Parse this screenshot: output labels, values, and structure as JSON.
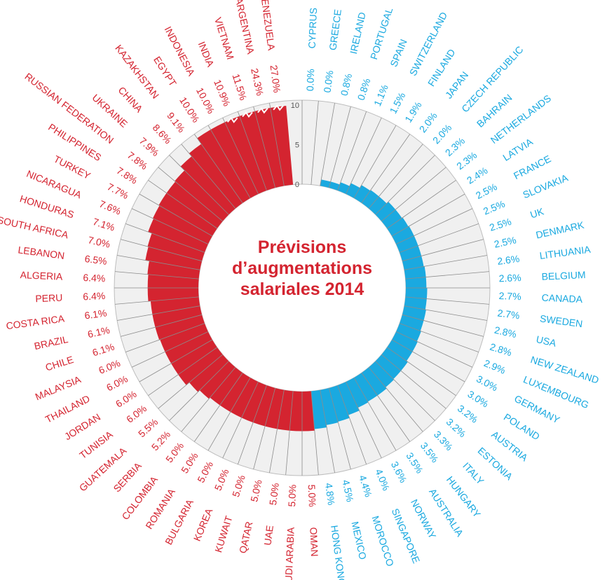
{
  "colors": {
    "high": "#d42430",
    "low": "#1aa9e0",
    "band": "#f0f0f0",
    "spoke": "#8c8c8c"
  },
  "chart_data": {
    "type": "bar",
    "layout": "radial",
    "title": [
      "Prévisions",
      "d’augmentations",
      "salariales 2014"
    ],
    "scale_ticks": [
      "0",
      "5",
      "10"
    ],
    "scale_max": 10,
    "series_below_3_percent": {
      "categories": [
        "CYPRUS",
        "GREECE",
        "IRELAND",
        "PORTUGAL",
        "SPAIN",
        "SWITZERLAND",
        "FINLAND",
        "JAPAN",
        "CZECH REPUBLIC",
        "BAHRAIN",
        "NETHERLANDS",
        "LATVIA",
        "FRANCE",
        "SLOVAKIA",
        "UK",
        "DENMARK",
        "LITHUANIA",
        "BELGIUM",
        "CANADA",
        "SWEDEN",
        "USA",
        "NEW ZEALAND",
        "LUXEMBOURG",
        "GERMANY",
        "POLAND",
        "AUSTRIA",
        "ESTONIA",
        "ITALY",
        "HUNGARY",
        "AUSTRALIA",
        "NORWAY",
        "SINGAPORE",
        "MOROCCO",
        "MEXICO",
        "HONG KONG"
      ],
      "values": [
        0.0,
        0.0,
        0.8,
        0.8,
        1.1,
        1.5,
        1.9,
        2.0,
        2.0,
        2.3,
        2.3,
        2.4,
        2.5,
        2.5,
        2.5,
        2.5,
        2.6,
        2.6,
        2.7,
        2.7,
        2.8,
        2.8,
        2.9,
        3.0,
        3.0,
        3.2,
        3.2,
        3.3,
        3.5,
        3.5,
        3.6,
        4.0,
        4.4,
        4.5,
        4.8
      ],
      "value_labels": [
        "0.0%",
        "0.0%",
        "0.8%",
        "0.8%",
        "1.1%",
        "1.5%",
        "1.9%",
        "2.0%",
        "2.0%",
        "2.3%",
        "2.3%",
        "2.4%",
        "2.5%",
        "2.5%",
        "2.5%",
        "2.5%",
        "2.6%",
        "2.6%",
        "2.7%",
        "2.7%",
        "2.8%",
        "2.8%",
        "2.9%",
        "3.0%",
        "3.0%",
        "3.2%",
        "3.2%",
        "3.3%",
        "3.5%",
        "3.5%",
        "3.6%",
        "4.0%",
        "4.4%",
        "4.5%",
        "4.8%"
      ]
    },
    "series_high": {
      "categories": [
        "OMAN",
        "SAUDI ARABIA",
        "UAE",
        "QATAR",
        "KUWAIT",
        "KOREA",
        "BULGARIA",
        "ROMANIA",
        "COLOMBIA",
        "SERBIA",
        "GUATEMALA",
        "TUNISIA",
        "JORDAN",
        "THAILAND",
        "MALAYSIA",
        "CHILE",
        "BRAZIL",
        "COSTA RICA",
        "PERU",
        "ALGERIA",
        "LEBANON",
        "SOUTH AFRICA",
        "HONDURAS",
        "NICARAGUA",
        "TURKEY",
        "PHILIPPINES",
        "RUSSIAN FEDERATION",
        "UKRAINE",
        "CHINA",
        "KAZAKHSTAN",
        "EGYPT",
        "INDONESIA",
        "INDIA",
        "VIETNAM",
        "ARGENTINA",
        "VENEZUELA"
      ],
      "values": [
        5.0,
        5.0,
        5.0,
        5.0,
        5.0,
        5.0,
        5.0,
        5.0,
        5.0,
        5.2,
        5.5,
        6.0,
        6.0,
        6.0,
        6.0,
        6.1,
        6.1,
        6.1,
        6.4,
        6.4,
        6.5,
        7.0,
        7.1,
        7.6,
        7.7,
        7.8,
        7.8,
        7.9,
        8.6,
        9.1,
        10.0,
        10.0,
        10.9,
        11.5,
        24.3,
        27.0
      ],
      "value_labels": [
        "5.0%",
        "5.0%",
        "5.0%",
        "5.0%",
        "5.0%",
        "5.0%",
        "5.0%",
        "5.0%",
        "5.0%",
        "5.2%",
        "5.5%",
        "6.0%",
        "6.0%",
        "6.0%",
        "6.0%",
        "6.1%",
        "6.1%",
        "6.1%",
        "6.4%",
        "6.4%",
        "6.5%",
        "7.0%",
        "7.1%",
        "7.6%",
        "7.7%",
        "7.8%",
        "7.8%",
        "7.9%",
        "8.6%",
        "9.1%",
        "10.0%",
        "10.0%",
        "10.9%",
        "11.5%",
        "24.3%",
        "27.0%"
      ]
    }
  }
}
